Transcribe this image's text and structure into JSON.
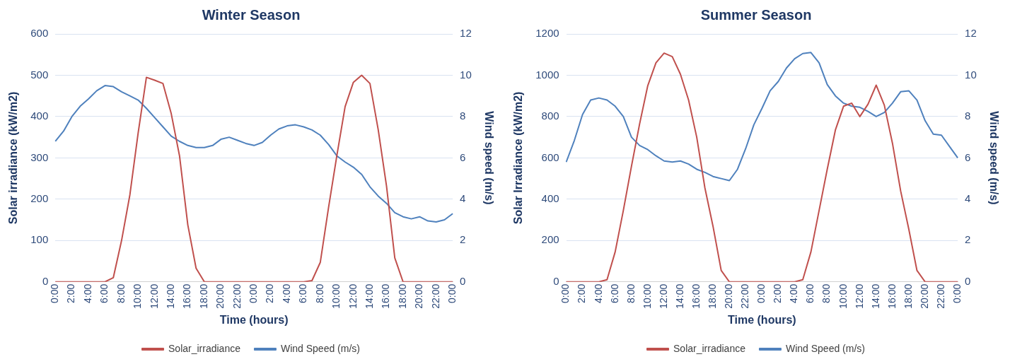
{
  "chart_data": [
    {
      "type": "line",
      "title": "Winter Season",
      "xlabel": "Time (hours)",
      "ylabel": "Solar irradiance (kW/m2)",
      "y2label": "Wind speed (m/s)",
      "categories": [
        "0:00",
        null,
        "2:00",
        null,
        "4:00",
        null,
        "6:00",
        null,
        "8:00",
        null,
        "10:00",
        null,
        "12:00",
        null,
        "14:00",
        null,
        "16:00",
        null,
        "18:00",
        null,
        "20:00",
        null,
        "22:00",
        null,
        "0:00",
        null,
        "2:00",
        null,
        "4:00",
        null,
        "6:00",
        null,
        "8:00",
        null,
        "10:00",
        null,
        "12:00",
        null,
        "14:00",
        null,
        "16:00",
        null,
        "18:00",
        null,
        "20:00",
        null,
        "22:00",
        null,
        "0:00"
      ],
      "series": [
        {
          "name": "Solar_irradiance",
          "color": "#c0504d",
          "values": [
            0,
            0,
            0,
            0,
            0,
            0,
            0,
            10,
            100,
            210,
            360,
            495,
            488,
            480,
            407,
            305,
            138,
            33,
            0,
            0,
            0,
            0,
            0,
            0,
            0,
            0,
            0,
            0,
            0,
            0,
            0,
            3,
            47,
            180,
            305,
            424,
            483,
            500,
            480,
            368,
            232,
            58,
            0,
            0,
            0,
            0,
            0,
            0,
            0
          ]
        },
        {
          "name": "Wind Speed (m/s)",
          "color": "#4f81bd",
          "axis": "y2",
          "values": [
            6.8,
            7.3,
            8.0,
            8.5,
            8.85,
            9.25,
            9.5,
            9.45,
            9.2,
            9.0,
            8.8,
            8.4,
            7.95,
            7.5,
            7.05,
            6.8,
            6.6,
            6.5,
            6.5,
            6.6,
            6.9,
            7.0,
            6.85,
            6.7,
            6.6,
            6.75,
            7.1,
            7.4,
            7.55,
            7.6,
            7.5,
            7.35,
            7.1,
            6.65,
            6.1,
            5.8,
            5.55,
            5.2,
            4.6,
            4.15,
            3.8,
            3.35,
            3.15,
            3.05,
            3.15,
            2.95,
            2.9,
            3.0,
            3.3
          ]
        }
      ],
      "ylim": [
        0,
        600
      ],
      "yticks": [
        0,
        100,
        200,
        300,
        400,
        500,
        600
      ],
      "y2lim": [
        0,
        12
      ],
      "y2ticks": [
        0,
        2,
        4,
        6,
        8,
        10,
        12
      ],
      "grid": "y",
      "legend": "bottom",
      "marker": "none"
    },
    {
      "type": "line",
      "title": "Summer Season",
      "xlabel": "Time (hours)",
      "ylabel": "Solar Irradiance (kW/m2)",
      "y2label": "Wind speed (m/s)",
      "categories": [
        "0:00",
        null,
        "2:00",
        null,
        "4:00",
        null,
        "6:00",
        null,
        "8:00",
        null,
        "10:00",
        null,
        "12:00",
        null,
        "14:00",
        null,
        "16:00",
        null,
        "18:00",
        null,
        "20:00",
        null,
        "22:00",
        null,
        "0:00",
        null,
        "2:00",
        null,
        "4:00",
        null,
        "6:00",
        null,
        "8:00",
        null,
        "10:00",
        null,
        "12:00",
        null,
        "14:00",
        null,
        "16:00",
        null,
        "18:00",
        null,
        "20:00",
        null,
        "22:00",
        null,
        "0:00"
      ],
      "series": [
        {
          "name": "Solar_irradiance",
          "color": "#c0504d",
          "values": [
            0,
            0,
            0,
            0,
            0,
            10,
            145,
            345,
            560,
            765,
            950,
            1060,
            1107,
            1090,
            1005,
            880,
            700,
            455,
            268,
            55,
            0,
            0,
            0,
            0,
            0,
            0,
            0,
            0,
            0,
            10,
            145,
            345,
            545,
            735,
            850,
            865,
            800,
            860,
            952,
            855,
            670,
            440,
            255,
            55,
            0,
            0,
            0,
            0,
            0
          ]
        },
        {
          "name": "Wind Speed (m/s)",
          "color": "#4f81bd",
          "axis": "y2",
          "values": [
            5.8,
            6.85,
            8.1,
            8.8,
            8.9,
            8.8,
            8.5,
            8.0,
            7.0,
            6.6,
            6.4,
            6.1,
            5.85,
            5.8,
            5.85,
            5.7,
            5.45,
            5.3,
            5.1,
            5.0,
            4.9,
            5.45,
            6.45,
            7.6,
            8.4,
            9.25,
            9.7,
            10.35,
            10.8,
            11.05,
            11.1,
            10.6,
            9.55,
            9.0,
            8.65,
            8.5,
            8.45,
            8.25,
            8.0,
            8.2,
            8.65,
            9.2,
            9.25,
            8.8,
            7.8,
            7.15,
            7.1,
            6.55,
            6.0
          ]
        }
      ],
      "ylim": [
        0,
        1200
      ],
      "yticks": [
        0,
        200,
        400,
        600,
        800,
        1000,
        1200
      ],
      "y2lim": [
        0,
        12
      ],
      "y2ticks": [
        0,
        2,
        4,
        6,
        8,
        10,
        12
      ],
      "grid": "y",
      "legend": "bottom",
      "marker": "none"
    }
  ]
}
